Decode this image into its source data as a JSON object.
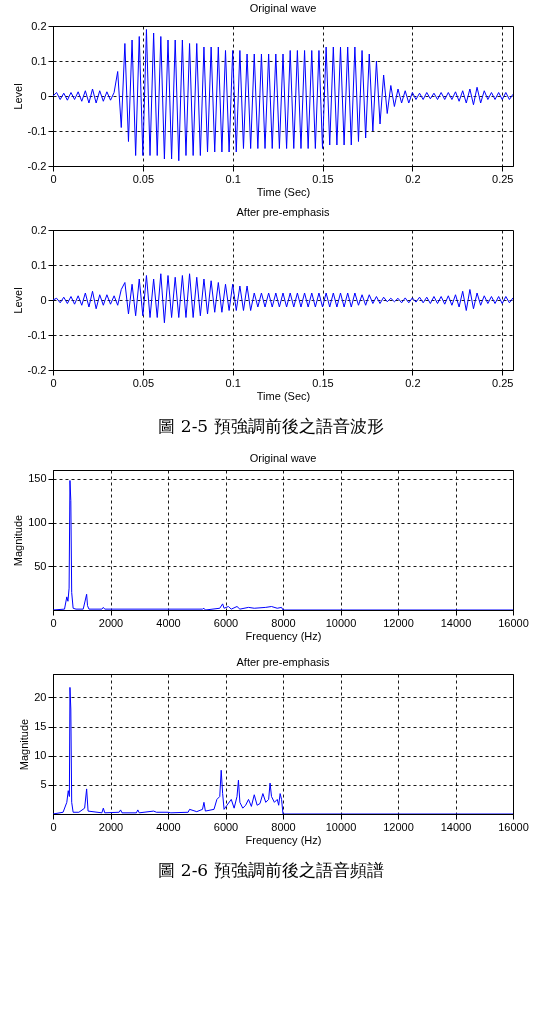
{
  "chart_data": [
    {
      "type": "line",
      "title": "Original wave",
      "xlabel": "Time (Sec)",
      "ylabel": "Level",
      "xlim": [
        0,
        0.256
      ],
      "xticks": [
        0,
        0.05,
        0.1,
        0.15,
        0.2,
        0.25
      ],
      "ylim": [
        -0.2,
        0.2
      ],
      "yticks": [
        -0.2,
        -0.1,
        0,
        0.1,
        0.2
      ],
      "grid": true,
      "series": [
        {
          "color": "#0000ff",
          "x": [
            0,
            0.002,
            0.004,
            0.006,
            0.008,
            0.01,
            0.012,
            0.014,
            0.016,
            0.018,
            0.02,
            0.022,
            0.024,
            0.026,
            0.028,
            0.03,
            0.032,
            0.034,
            0.036,
            0.038,
            0.04,
            0.042,
            0.044,
            0.046,
            0.048,
            0.05,
            0.052,
            0.054,
            0.056,
            0.058,
            0.06,
            0.062,
            0.064,
            0.066,
            0.068,
            0.07,
            0.072,
            0.074,
            0.076,
            0.078,
            0.08,
            0.082,
            0.084,
            0.086,
            0.088,
            0.09,
            0.092,
            0.094,
            0.096,
            0.098,
            0.1,
            0.102,
            0.104,
            0.106,
            0.108,
            0.11,
            0.112,
            0.114,
            0.116,
            0.118,
            0.12,
            0.122,
            0.124,
            0.126,
            0.128,
            0.13,
            0.132,
            0.134,
            0.136,
            0.138,
            0.14,
            0.142,
            0.144,
            0.146,
            0.148,
            0.15,
            0.152,
            0.154,
            0.156,
            0.158,
            0.16,
            0.162,
            0.164,
            0.166,
            0.168,
            0.17,
            0.172,
            0.174,
            0.176,
            0.178,
            0.18,
            0.182,
            0.184,
            0.186,
            0.188,
            0.19,
            0.192,
            0.194,
            0.196,
            0.198,
            0.2,
            0.202,
            0.204,
            0.206,
            0.208,
            0.21,
            0.212,
            0.214,
            0.216,
            0.218,
            0.22,
            0.222,
            0.224,
            0.226,
            0.228,
            0.23,
            0.232,
            0.234,
            0.236,
            0.238,
            0.24,
            0.242,
            0.244,
            0.246,
            0.248,
            0.25,
            0.252,
            0.254,
            0.256
          ],
          "values": [
            0,
            0.01,
            -0.01,
            0.008,
            -0.012,
            0.01,
            -0.01,
            0.012,
            -0.015,
            0.015,
            -0.02,
            0.02,
            -0.02,
            0.015,
            -0.015,
            0.012,
            -0.012,
            0.01,
            0.07,
            -0.09,
            0.15,
            -0.13,
            0.16,
            -0.17,
            0.17,
            -0.17,
            0.19,
            -0.17,
            0.18,
            -0.17,
            0.17,
            -0.18,
            0.16,
            -0.18,
            0.16,
            -0.185,
            0.16,
            -0.17,
            0.15,
            -0.17,
            0.15,
            -0.17,
            0.14,
            -0.16,
            0.14,
            -0.16,
            0.14,
            -0.16,
            0.13,
            -0.16,
            0.13,
            -0.16,
            0.13,
            -0.15,
            0.12,
            -0.15,
            0.12,
            -0.15,
            0.12,
            -0.15,
            0.12,
            -0.15,
            0.12,
            -0.15,
            0.12,
            -0.15,
            0.13,
            -0.15,
            0.13,
            -0.15,
            0.13,
            -0.15,
            0.13,
            -0.15,
            0.13,
            -0.15,
            0.14,
            -0.14,
            0.14,
            -0.14,
            0.14,
            -0.14,
            0.14,
            -0.14,
            0.14,
            -0.13,
            0.13,
            -0.12,
            0.12,
            -0.1,
            0.1,
            -0.08,
            0.06,
            -0.05,
            0.03,
            -0.03,
            0.02,
            -0.02,
            0.015,
            -0.02,
            0.01,
            -0.01,
            0.008,
            -0.01,
            0.01,
            -0.008,
            0.008,
            -0.01,
            0.01,
            -0.01,
            0.01,
            -0.01,
            0.012,
            -0.015,
            0.015,
            -0.02,
            0.02,
            -0.025,
            0.025,
            -0.02,
            0.015,
            -0.01,
            0.01,
            -0.01,
            0.01,
            -0.01,
            0.01,
            -0.01,
            0.005
          ]
        }
      ]
    },
    {
      "type": "line",
      "title": "After pre-emphasis",
      "xlabel": "Time (Sec)",
      "ylabel": "Level",
      "xlim": [
        0,
        0.256
      ],
      "xticks": [
        0,
        0.05,
        0.1,
        0.15,
        0.2,
        0.25
      ],
      "ylim": [
        -0.2,
        0.2
      ],
      "yticks": [
        -0.2,
        -0.1,
        0,
        0.1,
        0.2
      ],
      "grid": true,
      "annotations": [
        "圖 2-5  預強調前後之語音波形"
      ],
      "series": [
        {
          "color": "#0000ff",
          "x": [
            0,
            0.002,
            0.004,
            0.006,
            0.008,
            0.01,
            0.012,
            0.014,
            0.016,
            0.018,
            0.02,
            0.022,
            0.024,
            0.026,
            0.028,
            0.03,
            0.032,
            0.034,
            0.036,
            0.038,
            0.04,
            0.042,
            0.044,
            0.046,
            0.048,
            0.05,
            0.052,
            0.054,
            0.056,
            0.058,
            0.06,
            0.062,
            0.064,
            0.066,
            0.068,
            0.07,
            0.072,
            0.074,
            0.076,
            0.078,
            0.08,
            0.082,
            0.084,
            0.086,
            0.088,
            0.09,
            0.092,
            0.094,
            0.096,
            0.098,
            0.1,
            0.102,
            0.104,
            0.106,
            0.108,
            0.11,
            0.112,
            0.114,
            0.116,
            0.118,
            0.12,
            0.122,
            0.124,
            0.126,
            0.128,
            0.13,
            0.132,
            0.134,
            0.136,
            0.138,
            0.14,
            0.142,
            0.144,
            0.146,
            0.148,
            0.15,
            0.152,
            0.154,
            0.156,
            0.158,
            0.16,
            0.162,
            0.164,
            0.166,
            0.168,
            0.17,
            0.172,
            0.174,
            0.176,
            0.178,
            0.18,
            0.182,
            0.184,
            0.186,
            0.188,
            0.19,
            0.192,
            0.194,
            0.196,
            0.198,
            0.2,
            0.202,
            0.204,
            0.206,
            0.208,
            0.21,
            0.212,
            0.214,
            0.216,
            0.218,
            0.22,
            0.222,
            0.224,
            0.226,
            0.228,
            0.23,
            0.232,
            0.234,
            0.236,
            0.238,
            0.24,
            0.242,
            0.244,
            0.246,
            0.248,
            0.25,
            0.252,
            0.254,
            0.256
          ],
          "values": [
            0,
            0.005,
            -0.008,
            0.008,
            -0.01,
            0.01,
            -0.012,
            0.012,
            -0.015,
            0.02,
            -0.02,
            0.025,
            -0.025,
            0.015,
            -0.015,
            0.015,
            -0.012,
            0.012,
            -0.015,
            0.03,
            0.05,
            -0.04,
            0.045,
            -0.045,
            0.06,
            -0.045,
            0.07,
            -0.05,
            0.06,
            -0.05,
            0.075,
            -0.065,
            0.07,
            -0.05,
            0.065,
            -0.05,
            0.07,
            -0.05,
            0.075,
            -0.05,
            0.065,
            -0.045,
            0.06,
            -0.04,
            0.055,
            -0.035,
            0.05,
            -0.035,
            0.045,
            -0.03,
            0.045,
            -0.03,
            0.04,
            -0.03,
            0.04,
            -0.03,
            0.02,
            -0.02,
            0.02,
            -0.02,
            0.02,
            -0.02,
            0.02,
            -0.02,
            0.02,
            -0.02,
            0.02,
            -0.02,
            0.02,
            -0.02,
            0.02,
            -0.02,
            0.02,
            -0.02,
            0.02,
            -0.02,
            0.02,
            -0.02,
            0.02,
            -0.02,
            0.02,
            -0.02,
            0.02,
            -0.02,
            0.02,
            -0.015,
            0.015,
            -0.015,
            0.015,
            -0.01,
            0.01,
            -0.01,
            0.008,
            -0.005,
            0.005,
            -0.005,
            0.005,
            -0.008,
            0.006,
            -0.008,
            0.006,
            -0.006,
            0.008,
            -0.008,
            0.008,
            -0.01,
            0.01,
            -0.01,
            0.01,
            -0.012,
            0.012,
            -0.015,
            0.015,
            -0.02,
            0.025,
            -0.03,
            0.03,
            -0.025,
            0.02,
            -0.015,
            0.012,
            -0.01,
            0.01,
            -0.01,
            0.01,
            -0.01,
            0.01,
            -0.008,
            0.006
          ]
        }
      ]
    },
    {
      "type": "line",
      "title": "Original wave",
      "xlabel": "Frequency (Hz)",
      "ylabel": "Magnitude",
      "xlim": [
        0,
        16000
      ],
      "xticks": [
        0,
        2000,
        4000,
        6000,
        8000,
        10000,
        12000,
        14000,
        16000
      ],
      "ylim": [
        0,
        160
      ],
      "yticks": [
        50,
        100,
        150
      ],
      "grid": true,
      "series": [
        {
          "color": "#0000ff",
          "x": [
            0,
            400,
            480,
            520,
            560,
            590,
            620,
            650,
            700,
            800,
            1050,
            1100,
            1170,
            1200,
            1250,
            1700,
            1750,
            1800,
            5200,
            5250,
            5300,
            5800,
            5900,
            5950,
            6100,
            6200,
            6400,
            6500,
            6800,
            7000,
            7400,
            7600,
            7800,
            7950,
            8000,
            16000
          ],
          "values": [
            0,
            1,
            15,
            10,
            25,
            148,
            125,
            20,
            2,
            1,
            1,
            8,
            18,
            5,
            1,
            1,
            3,
            1,
            1,
            2,
            0,
            2,
            7,
            2,
            4,
            1,
            4,
            1,
            3,
            2,
            3,
            4,
            2,
            3,
            0,
            0
          ]
        }
      ]
    },
    {
      "type": "line",
      "title": "After pre-emphasis",
      "xlabel": "Frequency (Hz)",
      "ylabel": "Magnitude",
      "xlim": [
        0,
        16000
      ],
      "xticks": [
        0,
        2000,
        4000,
        6000,
        8000,
        10000,
        12000,
        14000,
        16000
      ],
      "ylim": [
        0,
        24
      ],
      "yticks": [
        5,
        10,
        15,
        20
      ],
      "grid": true,
      "annotations": [
        "圖 2-6  預強調前後之語音頻譜"
      ],
      "series": [
        {
          "color": "#0000ff",
          "x": [
            0,
            350,
            480,
            530,
            570,
            590,
            620,
            650,
            700,
            900,
            1100,
            1170,
            1220,
            1700,
            1750,
            1800,
            2300,
            2350,
            2400,
            2900,
            2950,
            3000,
            3500,
            3600,
            4000,
            4100,
            4700,
            4750,
            5000,
            5200,
            5250,
            5300,
            5600,
            5700,
            5800,
            5850,
            5900,
            5950,
            6050,
            6200,
            6300,
            6400,
            6450,
            6500,
            6600,
            6700,
            6800,
            6900,
            7000,
            7100,
            7200,
            7300,
            7400,
            7500,
            7550,
            7600,
            7700,
            7800,
            7850,
            7900,
            7950,
            8000,
            16000
          ],
          "values": [
            0,
            0.3,
            2,
            4,
            3,
            21.7,
            18,
            2,
            0.3,
            0.3,
            1,
            4.3,
            0.5,
            0.2,
            1,
            0.2,
            0.3,
            0.7,
            0.2,
            0.2,
            0.7,
            0.2,
            0.5,
            0.3,
            0.3,
            0.2,
            0.3,
            0.8,
            0.4,
            0.8,
            2,
            0.5,
            0.8,
            2.5,
            3,
            7.5,
            3.5,
            0.8,
            1.5,
            2.5,
            1,
            3,
            5.8,
            2,
            1,
            1.5,
            2.5,
            1.3,
            3.3,
            1.5,
            1.8,
            3.5,
            2,
            2.5,
            5.3,
            3,
            2,
            2.5,
            1.5,
            3.5,
            2.5,
            0,
            0
          ]
        }
      ]
    }
  ]
}
